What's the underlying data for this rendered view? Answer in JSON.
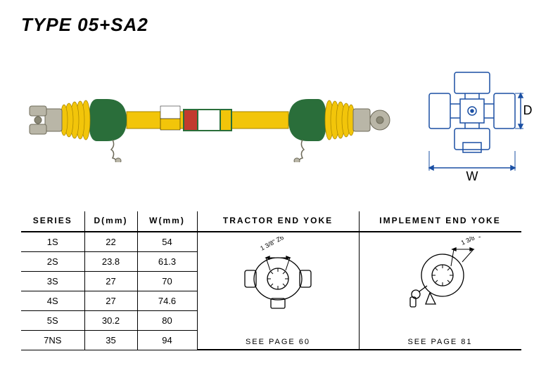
{
  "title": "TYPE 05+SA2",
  "shaft_colors": {
    "guard_yellow": "#f2c50a",
    "end_green": "#2a6e3a",
    "metal": "#b9b6a7",
    "metal_dark": "#8a8876",
    "label_red": "#c23a2e",
    "label_white": "#ffffff",
    "chain": "#6e6b5a"
  },
  "cross_diagram": {
    "line_color": "#1a4fa3",
    "d_label": "D",
    "w_label": "W",
    "label_fontsize": 18
  },
  "table": {
    "columns": [
      "SERIES",
      "D(mm)",
      "W(mm)"
    ],
    "rows": [
      [
        "1S",
        "22",
        "54"
      ],
      [
        "2S",
        "23.8",
        "61.3"
      ],
      [
        "3S",
        "27",
        "70"
      ],
      [
        "4S",
        "27",
        "74.6"
      ],
      [
        "5S",
        "30.2",
        "80"
      ],
      [
        "7NS",
        "35",
        "94"
      ]
    ]
  },
  "yokes": {
    "tractor": {
      "header": "TRACTOR END YOKE",
      "dim_label": "1 3/8\" Z6",
      "see_page": "SEE PAGE 60"
    },
    "implement": {
      "header": "IMPLEMENT END YOKE",
      "dim_label": "1 3/8\" Z6",
      "see_page": "SEE PAGE 81"
    },
    "line_color": "#000000"
  }
}
